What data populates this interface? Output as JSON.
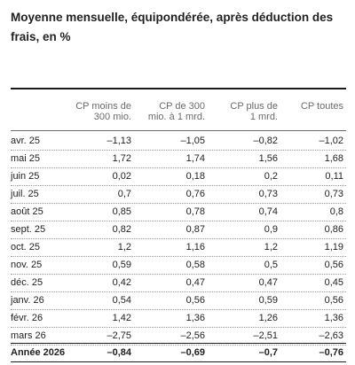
{
  "title": "Moyenne mensuelle, équipondérée, après déduction des frais, en %",
  "table": {
    "headers": [
      [
        "CP moins de",
        "300 mio."
      ],
      [
        "CP de 300",
        "mio. à 1 mrd."
      ],
      [
        "CP plus de",
        "1 mrd."
      ],
      [
        "CP toutes",
        ""
      ]
    ],
    "rows": [
      {
        "month": "avr. 25",
        "values": [
          "–1,13",
          "–1,05",
          "–0,82",
          "–1,02"
        ]
      },
      {
        "month": "mai 25",
        "values": [
          "1,72",
          "1,74",
          "1,56",
          "1,68"
        ]
      },
      {
        "month": "juin 25",
        "values": [
          "0,02",
          "0,18",
          "0,2",
          "0,11"
        ]
      },
      {
        "month": "juil. 25",
        "values": [
          "0,7",
          "0,76",
          "0,73",
          "0,73"
        ]
      },
      {
        "month": "août 25",
        "values": [
          "0,85",
          "0,78",
          "0,74",
          "0,8"
        ]
      },
      {
        "month": "sept. 25",
        "values": [
          "0,82",
          "0,87",
          "0,9",
          "0,86"
        ]
      },
      {
        "month": "oct. 25",
        "values": [
          "1,2",
          "1,16",
          "1,2",
          "1,19"
        ]
      },
      {
        "month": "nov. 25",
        "values": [
          "0,59",
          "0,58",
          "0,5",
          "0,56"
        ]
      },
      {
        "month": "déc. 25",
        "values": [
          "0,42",
          "0,47",
          "0,47",
          "0,45"
        ]
      },
      {
        "month": "janv. 26",
        "values": [
          "0,54",
          "0,56",
          "0,59",
          "0,56"
        ]
      },
      {
        "month": "févr. 26",
        "values": [
          "1,42",
          "1,36",
          "1,26",
          "1,36"
        ]
      },
      {
        "month": "mars 26",
        "values": [
          "–2,75",
          "–2,56",
          "–2,51",
          "–2,63"
        ]
      }
    ],
    "total": {
      "month": "Année 2026",
      "values": [
        "–0,84",
        "–0,69",
        "–0,7",
        "–0,76"
      ]
    }
  }
}
